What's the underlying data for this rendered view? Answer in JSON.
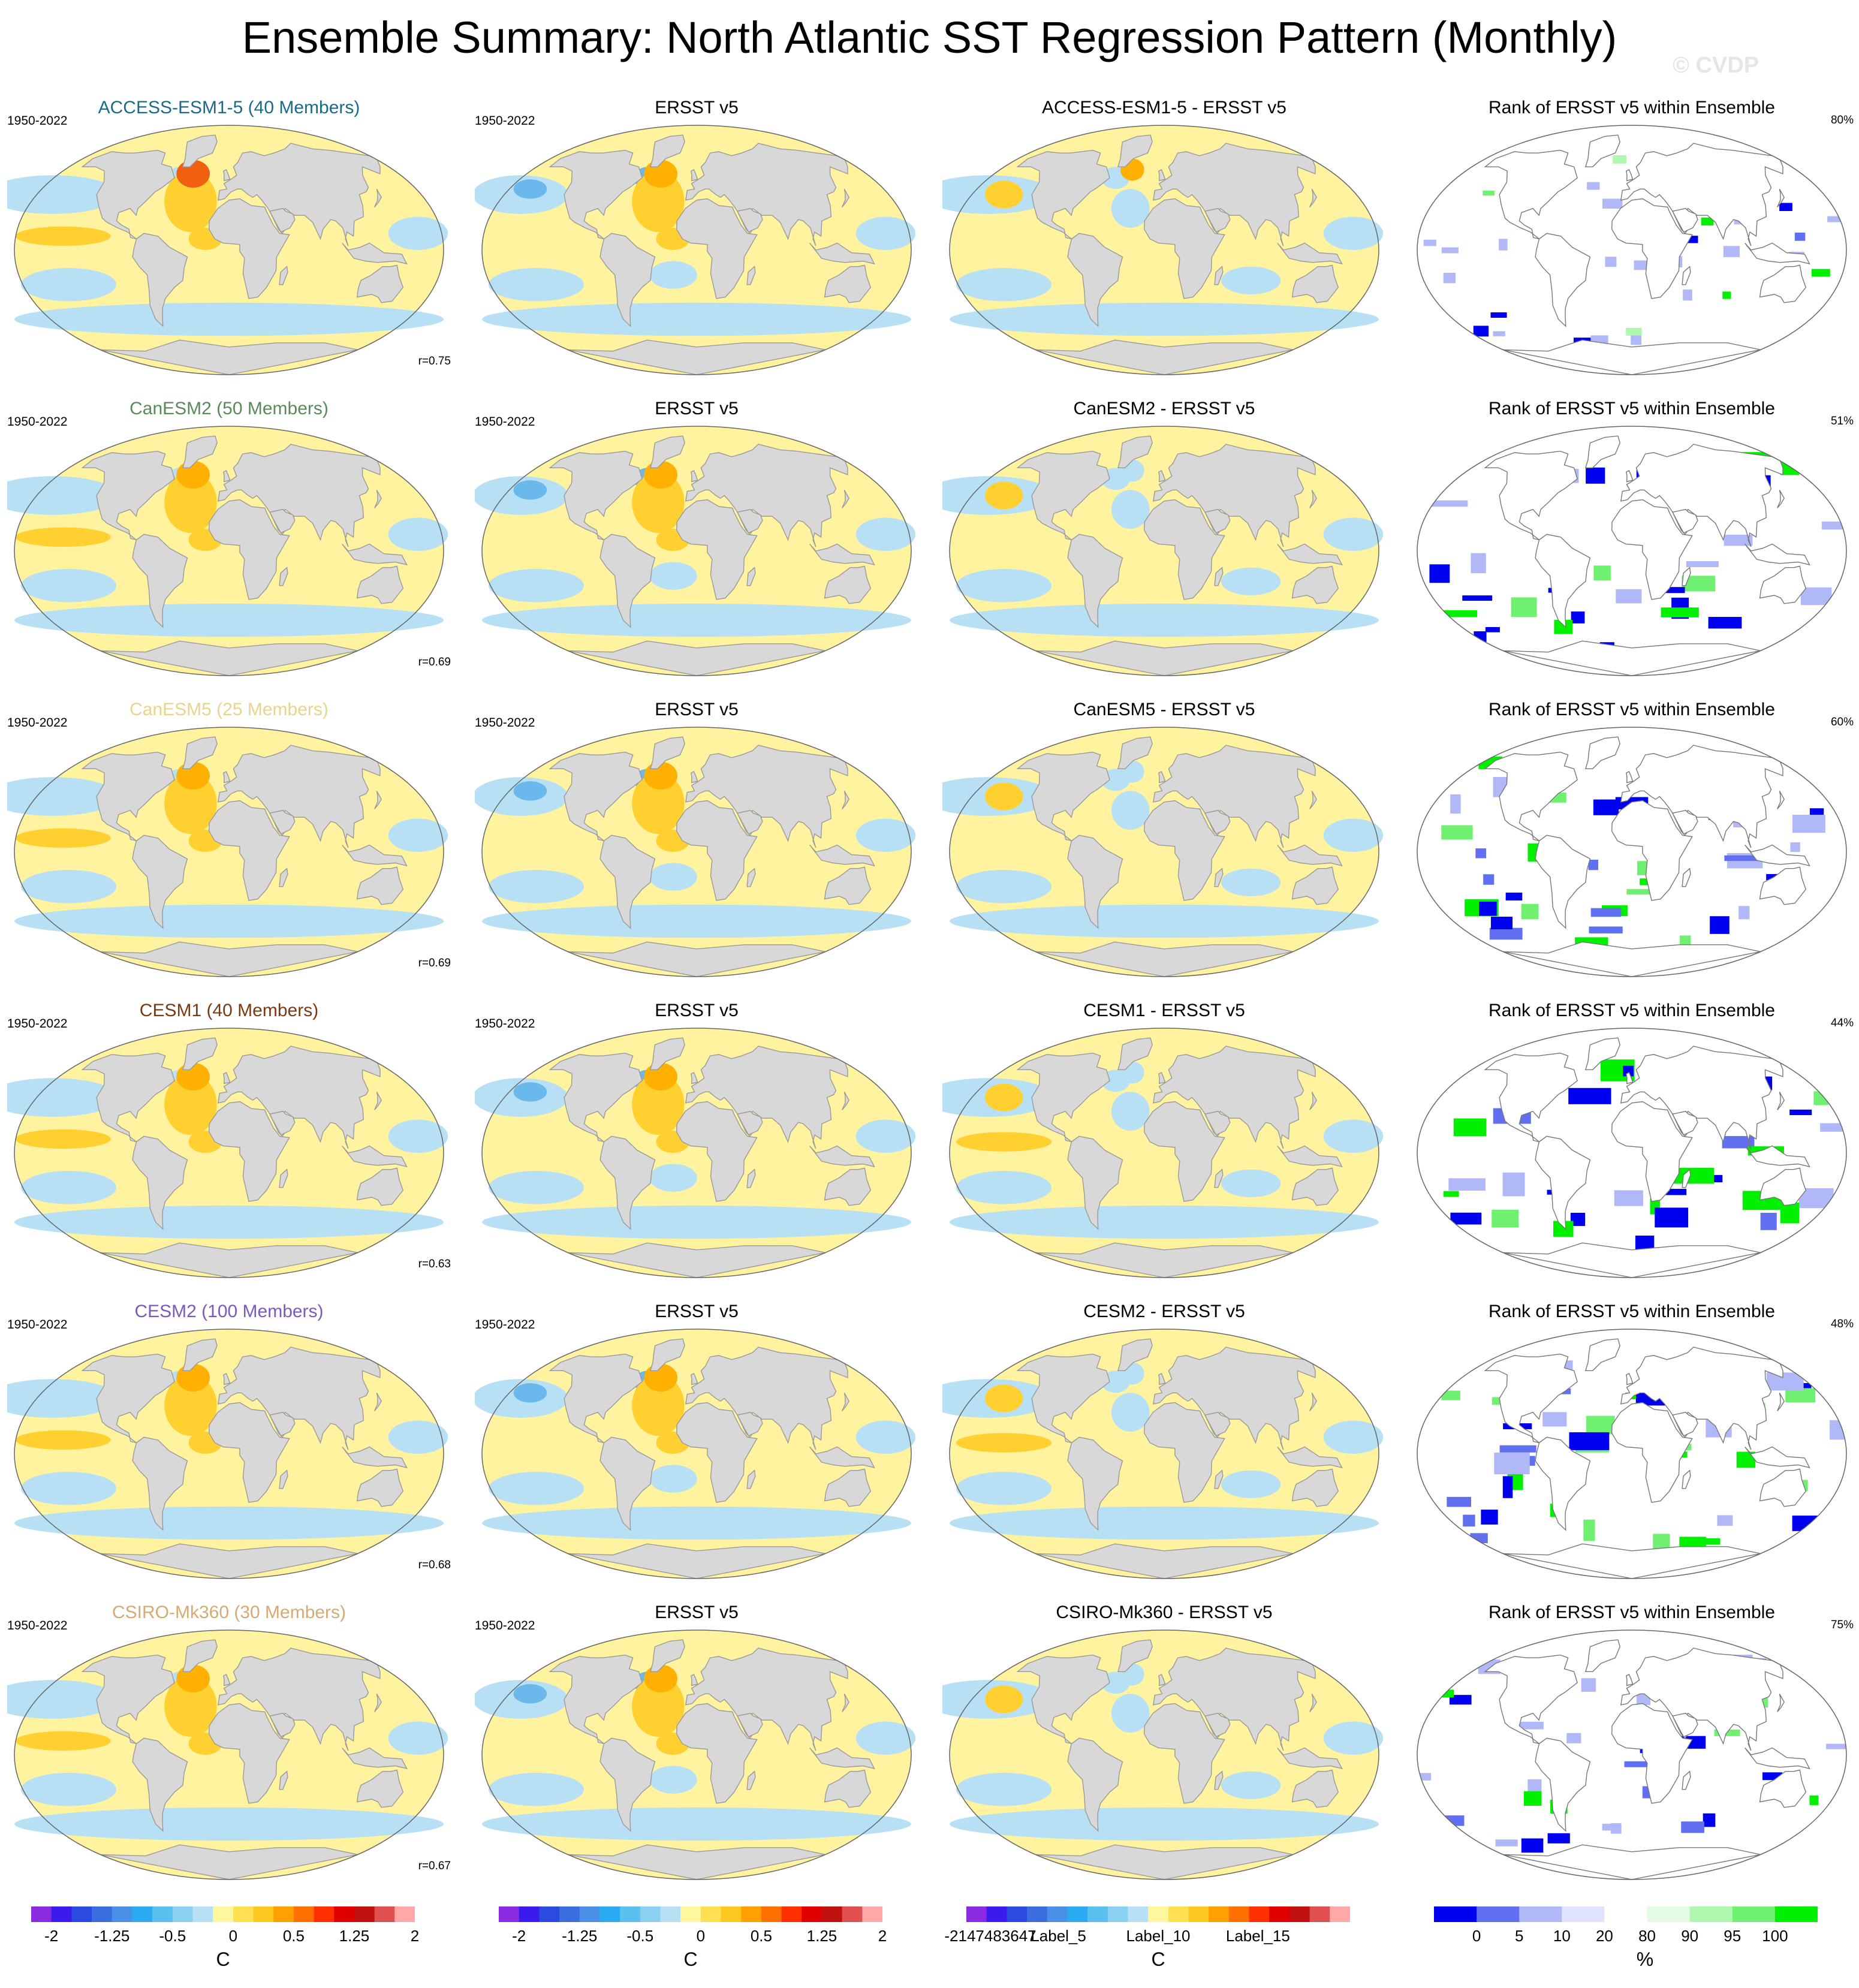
{
  "chart_data": {
    "type": "heatmap",
    "title": "Ensemble Summary: North Atlantic SST Regression Pattern (Monthly)",
    "watermark": "© CVDP",
    "observation": "ERSST v5",
    "period": "1950-2022",
    "rows": [
      {
        "model": "ACCESS-ESM1-5",
        "members": 40,
        "title": "ACCESS-ESM1-5 (40 Members)",
        "color": "#1a6a8a",
        "diff_title": "ACCESS-ESM1-5 - ERSST v5",
        "r": "r=0.75",
        "rank_pct": "80%"
      },
      {
        "model": "CanESM2",
        "members": 50,
        "title": "CanESM2 (50 Members)",
        "color": "#5a8a5a",
        "diff_title": "CanESM2 - ERSST v5",
        "r": "r=0.69",
        "rank_pct": "51%"
      },
      {
        "model": "CanESM5",
        "members": 25,
        "title": "CanESM5 (25 Members)",
        "color": "#e8d48a",
        "diff_title": "CanESM5 - ERSST v5",
        "r": "r=0.69",
        "rank_pct": "60%"
      },
      {
        "model": "CESM1",
        "members": 40,
        "title": "CESM1 (40 Members)",
        "color": "#7a3a14",
        "diff_title": "CESM1 - ERSST v5",
        "r": "r=0.63",
        "rank_pct": "44%"
      },
      {
        "model": "CESM2",
        "members": 100,
        "title": "CESM2 (100 Members)",
        "color": "#7a5abf",
        "diff_title": "CESM2 - ERSST v5",
        "r": "r=0.68",
        "rank_pct": "48%"
      },
      {
        "model": "CSIRO-Mk360",
        "members": 30,
        "title": "CSIRO-Mk360 (30 Members)",
        "color": "#d6aa74",
        "diff_title": "CSIRO-Mk360 - ERSST v5",
        "r": "r=0.67",
        "rank_pct": "75%"
      }
    ],
    "obs_title": "ERSST v5",
    "rank_title": "Rank of ERSST v5 within Ensemble",
    "legends": [
      {
        "unit": "C",
        "ticks": [
          "-2",
          "-1.25",
          "-0.5",
          "0",
          "0.5",
          "1.25",
          "2"
        ]
      },
      {
        "unit": "C",
        "ticks": [
          "-2",
          "-1.25",
          "-0.5",
          "0",
          "0.5",
          "1.25",
          "2"
        ]
      },
      {
        "unit": "C",
        "ticks": [
          "-2147483647",
          "Label_5",
          "Label_10",
          "Label_15"
        ]
      },
      {
        "unit": "%",
        "ticks": [
          "0",
          "5",
          "10",
          "20",
          "80",
          "90",
          "95",
          "100"
        ]
      }
    ],
    "sst_colors": [
      "#8a2be2",
      "#3a1aef",
      "#2a4ae0",
      "#3a6ee0",
      "#4a90e8",
      "#2aaaf0",
      "#5ac0f0",
      "#8ad0f0",
      "#b8e0f4",
      "#fff7a0",
      "#ffe050",
      "#ffc820",
      "#ffa000",
      "#ff7000",
      "#ff3000",
      "#e00000",
      "#c01010",
      "#e05050",
      "#ffa8a8"
    ],
    "rank_colors": [
      "#0000f0",
      "#6070f0",
      "#b0b8f8",
      "#e0e4fc",
      "#ffffff",
      "#e4fce4",
      "#b0f8b0",
      "#70f070",
      "#00f000"
    ],
    "colors": {
      "ocean_cool": "#b8e0f4",
      "ocean_warm": "#fff3a0",
      "warm_mid": "#ffd030",
      "warm_strong": "#ffb000",
      "hot": "#f06010",
      "cool_mid": "#6ab8ec",
      "land": "#d8d8d8"
    }
  }
}
